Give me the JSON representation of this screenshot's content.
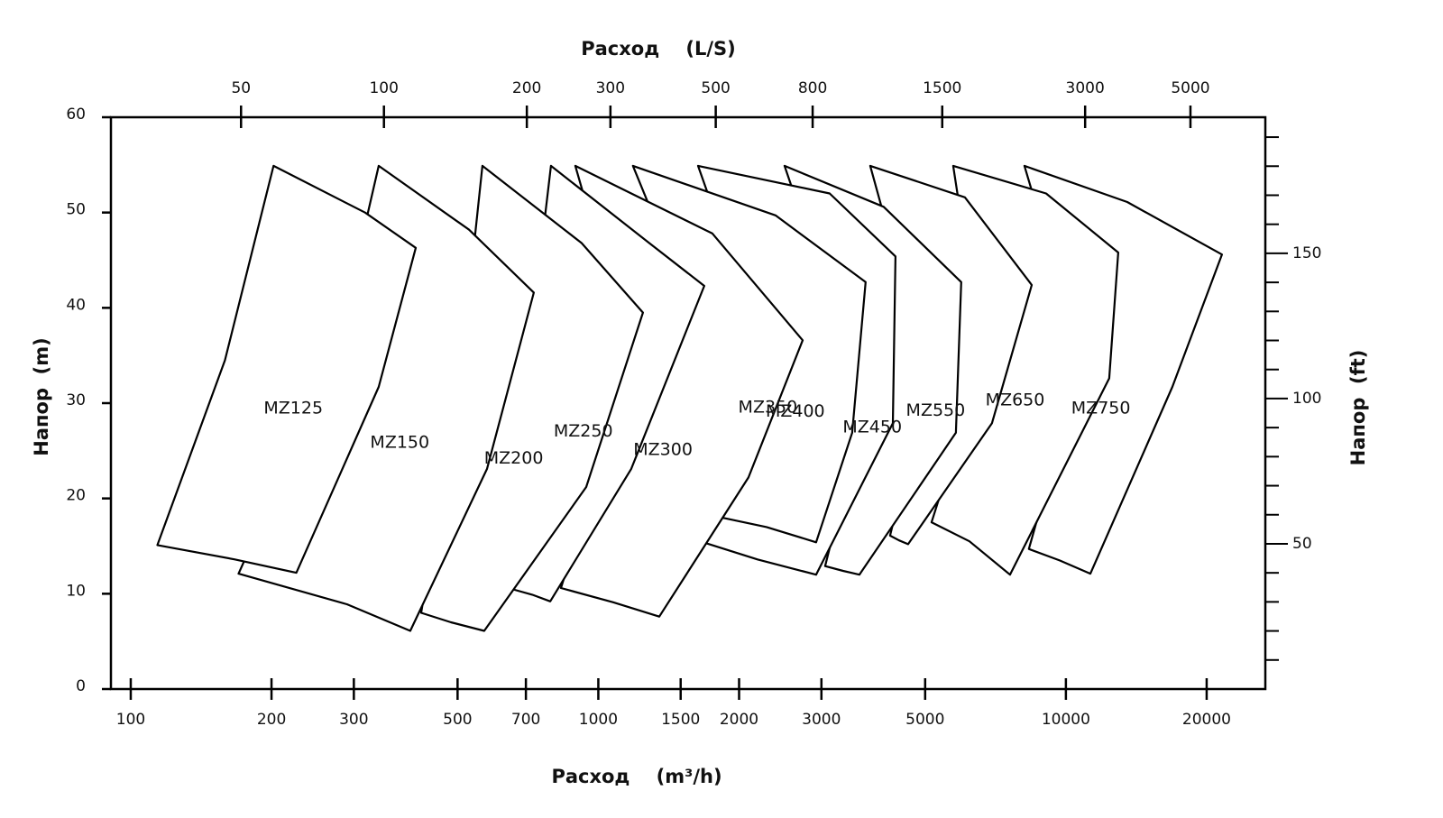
{
  "chart_data": {
    "type": "zones",
    "x_label": "Расход    (m³/h)",
    "x2_label": "Расход    (L/S)",
    "y_label": "Напор  (m)",
    "y2_label": "Напор  (ft)",
    "xscale": "log",
    "x2scale": "log",
    "xlim": [
      90.7,
      26700
    ],
    "xticks": [
      100,
      200,
      300,
      500,
      700,
      1000,
      1500,
      2000,
      3000,
      5000,
      10000,
      20000
    ],
    "x2lim": [
      26.6,
      7190
    ],
    "x2ticks": [
      50,
      100,
      200,
      300,
      500,
      800,
      1500,
      3000,
      5000
    ],
    "ylim": [
      0,
      60
    ],
    "yticks": [
      0,
      10,
      20,
      30,
      40,
      50,
      60
    ],
    "y2lim": [
      0,
      196.85
    ],
    "y2ticks": [
      50,
      100,
      150
    ],
    "y2minor_ticks": [
      10,
      20,
      30,
      40,
      60,
      70,
      80,
      90,
      110,
      120,
      130,
      140,
      160,
      170,
      180,
      190
    ],
    "color": "#000000",
    "zones": [
      {
        "name": "MZ125",
        "x": [
          202,
          317,
          407,
          339,
          226,
          167,
          114,
          159
        ],
        "y": [
          54.9,
          50.0,
          46.3,
          31.7,
          12.2,
          13.6,
          15.1,
          34.5
        ]
      },
      {
        "name": "MZ150",
        "x": [
          339,
          529,
          728,
          578,
          396,
          290,
          170,
          272
        ],
        "y": [
          54.9,
          48.2,
          41.6,
          23.1,
          6.1,
          8.9,
          12.1,
          34.5
        ]
      },
      {
        "name": "MZ200",
        "x": [
          565,
          921,
          1246,
          942,
          570,
          484,
          418,
          506
        ],
        "y": [
          54.9,
          46.8,
          39.5,
          21.2,
          6.1,
          7.0,
          8.0,
          32.6
        ]
      },
      {
        "name": "MZ250",
        "x": [
          792,
          1285,
          1685,
          1176,
          789,
          722,
          652,
          738
        ],
        "y": [
          54.9,
          46.8,
          42.3,
          23.1,
          9.2,
          9.9,
          10.5,
          42.1
        ]
      },
      {
        "name": "MZ300",
        "x": [
          893,
          1754,
          2735,
          2095,
          1350,
          1076,
          832,
          1176
        ],
        "y": [
          54.9,
          47.8,
          36.6,
          22.2,
          7.6,
          9.1,
          10.6,
          34.5
        ]
      },
      {
        "name": "MZ350",
        "x": [
          1186,
          2393,
          3730,
          3490,
          2923,
          2290,
          1833,
          1754
        ],
        "y": [
          54.9,
          49.7,
          42.7,
          26.9,
          15.4,
          17.0,
          18.0,
          34.5
        ]
      },
      {
        "name": "MZ400",
        "x": [
          1634,
          3124,
          4320,
          4264,
          2923,
          2190,
          1700,
          2290
        ],
        "y": [
          54.9,
          52.0,
          45.4,
          27.9,
          12.0,
          13.6,
          15.3,
          34.5
        ]
      },
      {
        "name": "MZ450",
        "x": [
          2502,
          4076,
          5973,
          5818,
          3617,
          3338,
          3055,
          3730
        ],
        "y": [
          54.9,
          50.6,
          42.7,
          26.9,
          12.0,
          12.4,
          12.9,
          29.8
        ]
      },
      {
        "name": "MZ550",
        "x": [
          3815,
          6081,
          8450,
          6948,
          4597,
          4398,
          4206,
          5091
        ],
        "y": [
          54.9,
          51.6,
          42.4,
          27.9,
          15.2,
          15.6,
          16.1,
          32.6
        ]
      },
      {
        "name": "MZ650",
        "x": [
          5741,
          9070,
          12940,
          12380,
          7593,
          6218,
          5159,
          6647
        ],
        "y": [
          54.9,
          52.0,
          45.8,
          32.6,
          12.0,
          15.5,
          17.5,
          34.5
        ]
      },
      {
        "name": "MZ750",
        "x": [
          8152,
          13530,
          21560,
          16890,
          11280,
          9694,
          8334,
          10830
        ],
        "y": [
          54.9,
          51.1,
          45.6,
          31.7,
          12.1,
          13.5,
          14.7,
          34.5
        ]
      }
    ]
  }
}
